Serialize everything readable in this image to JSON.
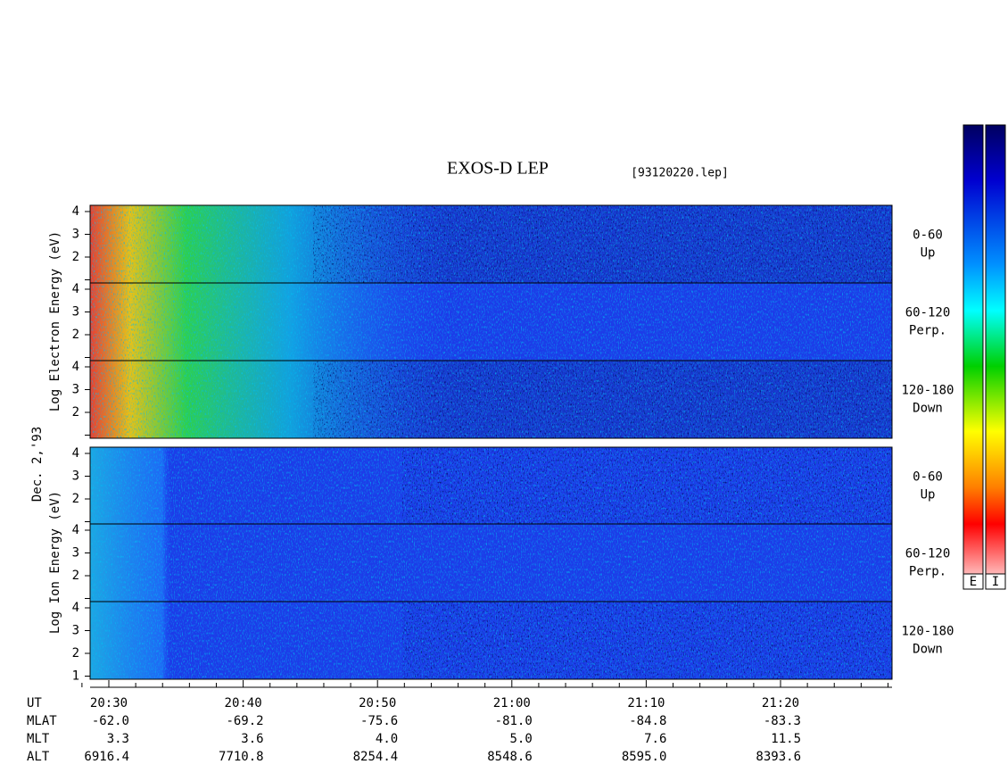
{
  "header": {
    "title": "EXOS-D LEP",
    "file": "[93120220.lep]"
  },
  "left_labels": {
    "electron": "Log  Electron  Energy (eV)",
    "date": "Dec. 2,'93",
    "ion": "Log  Ion  Energy (eV)"
  },
  "energy_ticks": [
    "4",
    "3",
    "2",
    "1"
  ],
  "pitch_angles": [
    {
      "range": "0-60",
      "direction": "Up"
    },
    {
      "range": "60-120",
      "direction": "Perp."
    },
    {
      "range": "120-180",
      "direction": "Down"
    }
  ],
  "colorbar_labels": [
    "E",
    "I"
  ],
  "time_axis": {
    "rows": [
      {
        "label": "UT",
        "values": [
          "20:30",
          "20:40",
          "20:50",
          "21:00",
          "21:10",
          "21:20"
        ]
      },
      {
        "label": "MLAT",
        "values": [
          "-62.0",
          "-69.2",
          "-75.6",
          "-81.0",
          "-84.8",
          "-83.3"
        ]
      },
      {
        "label": "MLT",
        "values": [
          "3.3",
          "3.6",
          "4.0",
          "5.0",
          "7.6",
          "11.5"
        ]
      },
      {
        "label": "ALT",
        "values": [
          "6916.4",
          "7710.8",
          "8254.4",
          "8548.6",
          "8595.0",
          "8393.6"
        ]
      }
    ]
  }
}
